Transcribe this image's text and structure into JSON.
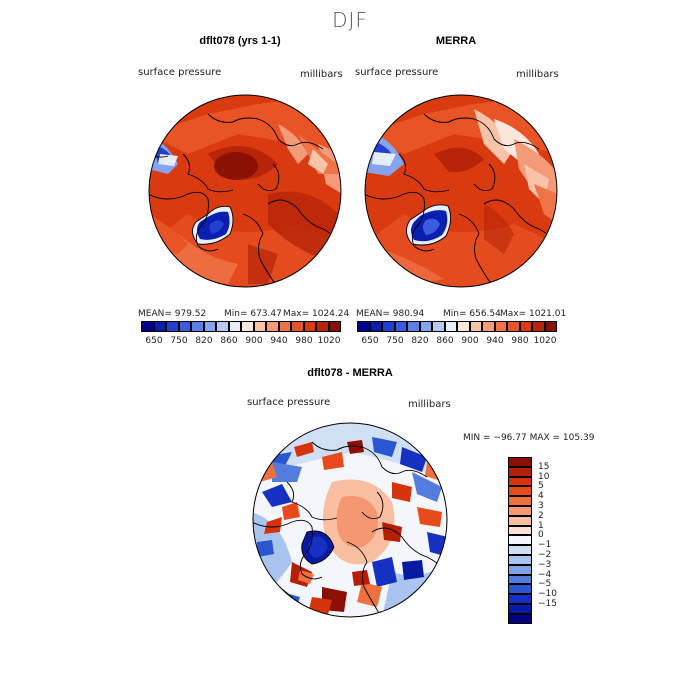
{
  "title": "DJF",
  "panels": {
    "model": {
      "title": "dflt078 (yrs 1-1)",
      "variable": "surface pressure",
      "units": "millibars",
      "stats": {
        "mean": "MEAN= 979.52",
        "min": "Min= 673.47",
        "max": "Max= 1024.24"
      }
    },
    "obs": {
      "title": "MERRA",
      "variable": "surface pressure",
      "units": "millibars",
      "stats": {
        "mean": "MEAN= 980.94",
        "min": "Min= 656.54",
        "max": "Max= 1021.01"
      }
    },
    "diff": {
      "title": "dflt078 - MERRA",
      "variable": "surface pressure",
      "units": "millibars",
      "stats": "MIN = −96.77 MAX = 105.39"
    }
  },
  "colorbar_abs": {
    "colors": [
      "#00008b",
      "#0a1fb0",
      "#2040d0",
      "#3a5ce0",
      "#5a7fe6",
      "#86a4ee",
      "#b7c9f4",
      "#e6edfb",
      "#fde7dc",
      "#f8c3a9",
      "#f39a78",
      "#ef7548",
      "#e85426",
      "#d93a10",
      "#b82408",
      "#8b1105"
    ],
    "labels": [
      "650",
      "750",
      "820",
      "860",
      "900",
      "940",
      "980",
      "1020"
    ]
  },
  "colorbar_diff": {
    "colors": [
      "#8b0f05",
      "#b51f06",
      "#d5330b",
      "#e64b19",
      "#ef6f3d",
      "#f59770",
      "#f8bfa0",
      "#fbe2d4",
      "#f3f6fb",
      "#cfe0f5",
      "#a8c4ef",
      "#7ea3e6",
      "#527ddc",
      "#2a56d2",
      "#1631c2",
      "#071aa3",
      "#000080"
    ],
    "labels": [
      "15",
      "10",
      "5",
      "4",
      "3",
      "2",
      "1",
      "0",
      "−1",
      "−2",
      "−3",
      "−4",
      "−5",
      "−10",
      "−15"
    ]
  }
}
